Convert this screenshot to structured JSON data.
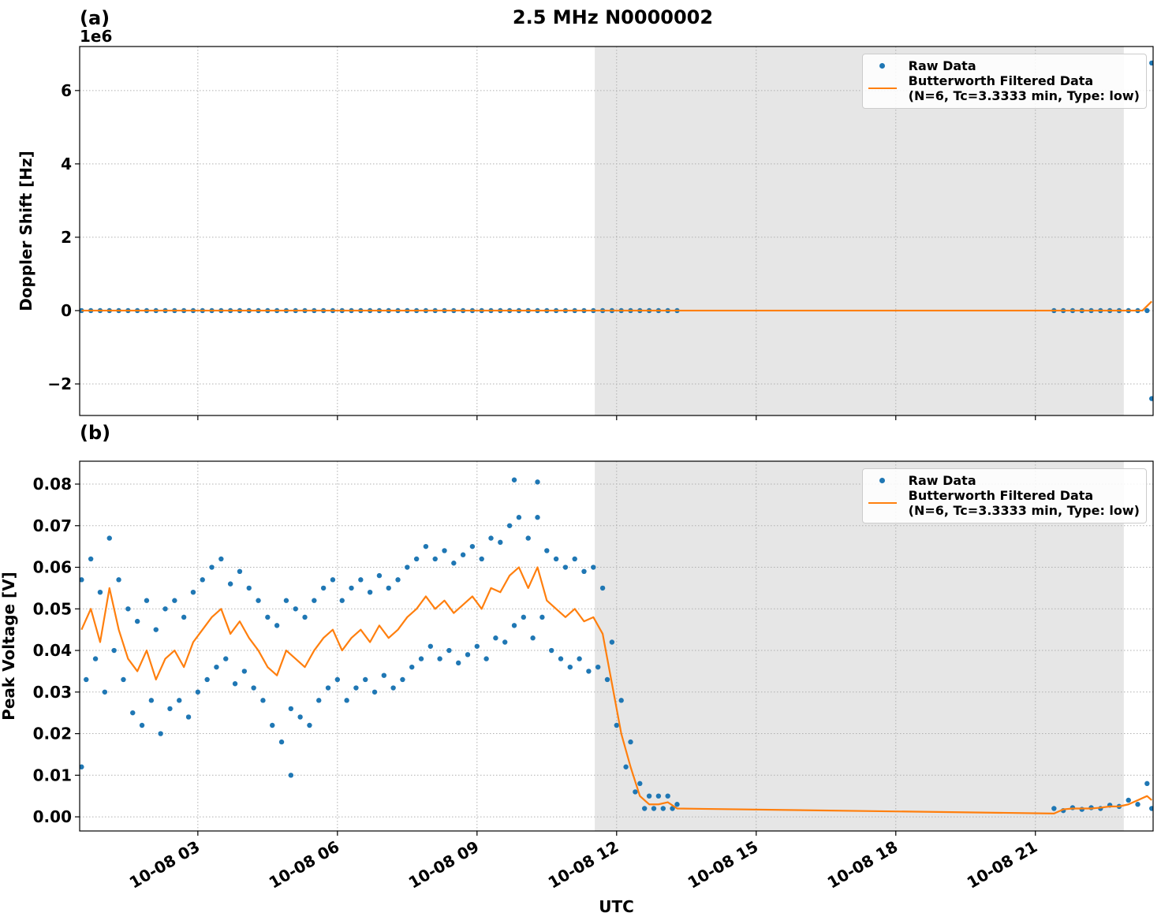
{
  "title": "2.5 MHz N0000002",
  "chart_data": [
    {
      "type": "combo",
      "panel_label": "(a)",
      "ylabel": "Doppler Shift [Hz]",
      "offset_label": "1e6",
      "xlim": [
        0.46,
        23.53
      ],
      "ylim": [
        -2.86,
        7.2
      ],
      "xticks": [
        {
          "value": 3,
          "label": "10-08 03"
        },
        {
          "value": 6,
          "label": "10-08 06"
        },
        {
          "value": 9,
          "label": "10-08 09"
        },
        {
          "value": 12,
          "label": "10-08 12"
        },
        {
          "value": 15,
          "label": "10-08 15"
        },
        {
          "value": 18,
          "label": "10-08 18"
        },
        {
          "value": 21,
          "label": "10-08 21"
        }
      ],
      "yticks": [
        {
          "value": -2,
          "label": "−2"
        },
        0,
        2,
        4,
        6
      ],
      "grid": true,
      "legend": "upper right",
      "shaded_span": [
        11.53,
        22.9
      ],
      "shade_color": "#e6e6e6",
      "series": [
        {
          "name": "Raw Data",
          "type": "scatter",
          "color": "#1f77b4",
          "x": [
            0.5,
            0.7,
            0.9,
            1.1,
            1.3,
            1.5,
            1.7,
            1.9,
            2.1,
            2.3,
            2.5,
            2.7,
            2.9,
            3.1,
            3.3,
            3.5,
            3.7,
            3.9,
            4.1,
            4.3,
            4.5,
            4.7,
            4.9,
            5.1,
            5.3,
            5.5,
            5.7,
            5.9,
            6.1,
            6.3,
            6.5,
            6.7,
            6.9,
            7.1,
            7.3,
            7.5,
            7.7,
            7.9,
            8.1,
            8.3,
            8.5,
            8.7,
            8.9,
            9.1,
            9.3,
            9.5,
            9.7,
            9.9,
            10.1,
            10.3,
            10.5,
            10.7,
            10.9,
            11.1,
            11.3,
            11.5,
            11.7,
            11.9,
            12.1,
            12.3,
            12.5,
            12.7,
            12.9,
            13.1,
            13.3,
            21.4,
            21.6,
            21.8,
            22.0,
            22.2,
            22.4,
            22.6,
            22.8,
            23.0,
            23.2,
            23.4,
            23.5,
            23.5
          ],
          "values": [
            0,
            0,
            0,
            0,
            0,
            0,
            0,
            0,
            0,
            0,
            0,
            0,
            0,
            0,
            0,
            0,
            0,
            0,
            0,
            0,
            0,
            0,
            0,
            0,
            0,
            0,
            0,
            0,
            0,
            0,
            0,
            0,
            0,
            0,
            0,
            0,
            0,
            0,
            0,
            0,
            0,
            0,
            0,
            0,
            0,
            0,
            0,
            0,
            0,
            0,
            0,
            0,
            0,
            0,
            0,
            0,
            0,
            0,
            0,
            0,
            0,
            0,
            0,
            0,
            0,
            0,
            0,
            0,
            0,
            0,
            0,
            0,
            0,
            0,
            0,
            0,
            6.75,
            -2.4
          ]
        },
        {
          "name": "Butterworth Filtered Data\n(N=6, Tc=3.3333 min, Type: low)",
          "type": "line",
          "color": "#ff7f0e",
          "x": [
            0.5,
            13.3,
            21.4,
            23.3,
            23.5
          ],
          "values": [
            0,
            0,
            0,
            0,
            0.25
          ]
        }
      ]
    },
    {
      "type": "combo",
      "panel_label": "(b)",
      "ylabel": "Peak Voltage [V]",
      "xlabel": "UTC",
      "xlim": [
        0.46,
        23.53
      ],
      "ylim": [
        -0.0034,
        0.0855
      ],
      "xticks": [
        {
          "value": 3,
          "label": "10-08 03"
        },
        {
          "value": 6,
          "label": "10-08 06"
        },
        {
          "value": 9,
          "label": "10-08 09"
        },
        {
          "value": 12,
          "label": "10-08 12"
        },
        {
          "value": 15,
          "label": "10-08 15"
        },
        {
          "value": 18,
          "label": "10-08 18"
        },
        {
          "value": 21,
          "label": "10-08 21"
        }
      ],
      "yticks": [
        {
          "value": 0,
          "label": "0.00"
        },
        0.01,
        0.02,
        0.03,
        0.04,
        0.05,
        0.06,
        0.07,
        0.08
      ],
      "grid": true,
      "legend": "upper right",
      "shaded_span": [
        11.53,
        22.9
      ],
      "shade_color": "#e6e6e6",
      "series": [
        {
          "name": "Raw Data",
          "type": "scatter",
          "color": "#1f77b4",
          "x": [
            0.5,
            0.6,
            0.7,
            0.8,
            0.9,
            1.0,
            1.1,
            1.2,
            1.3,
            1.4,
            1.5,
            1.6,
            1.7,
            1.8,
            1.9,
            2.0,
            2.1,
            2.2,
            2.3,
            2.4,
            2.5,
            2.6,
            2.7,
            2.8,
            2.9,
            3.0,
            3.1,
            3.2,
            3.3,
            3.4,
            3.5,
            3.6,
            3.7,
            3.8,
            3.9,
            4.0,
            4.1,
            4.2,
            4.3,
            4.4,
            4.5,
            4.6,
            4.7,
            4.8,
            4.9,
            5.0,
            5.1,
            5.2,
            5.3,
            5.4,
            5.5,
            5.6,
            5.7,
            5.8,
            5.9,
            6.0,
            6.1,
            6.2,
            6.3,
            6.4,
            6.5,
            6.6,
            6.7,
            6.8,
            6.9,
            7.0,
            7.1,
            7.2,
            7.3,
            7.4,
            7.5,
            7.6,
            7.7,
            7.8,
            7.9,
            8.0,
            8.1,
            8.2,
            8.3,
            8.4,
            8.5,
            8.6,
            8.7,
            8.8,
            8.9,
            9.0,
            9.1,
            9.2,
            9.3,
            9.4,
            9.5,
            9.6,
            9.7,
            9.8,
            9.9,
            10.0,
            10.1,
            10.2,
            10.3,
            10.4,
            10.5,
            10.6,
            10.7,
            10.8,
            10.9,
            11.0,
            11.1,
            11.2,
            11.3,
            11.4,
            11.5,
            11.6,
            11.7,
            11.8,
            11.9,
            12.0,
            12.1,
            12.2,
            12.3,
            12.4,
            12.5,
            12.6,
            12.7,
            12.8,
            12.9,
            13.0,
            13.1,
            13.2,
            13.3,
            21.4,
            21.6,
            21.8,
            22.0,
            22.2,
            22.4,
            22.6,
            22.8,
            23.0,
            23.2,
            23.4,
            23.5,
            9.8,
            10.3,
            0.5,
            5.0
          ],
          "values": [
            0.057,
            0.033,
            0.062,
            0.038,
            0.054,
            0.03,
            0.067,
            0.04,
            0.057,
            0.033,
            0.05,
            0.025,
            0.047,
            0.022,
            0.052,
            0.028,
            0.045,
            0.02,
            0.05,
            0.026,
            0.052,
            0.028,
            0.048,
            0.024,
            0.054,
            0.03,
            0.057,
            0.033,
            0.06,
            0.036,
            0.062,
            0.038,
            0.056,
            0.032,
            0.059,
            0.035,
            0.055,
            0.031,
            0.052,
            0.028,
            0.048,
            0.022,
            0.046,
            0.018,
            0.052,
            0.026,
            0.05,
            0.024,
            0.048,
            0.022,
            0.052,
            0.028,
            0.055,
            0.031,
            0.057,
            0.033,
            0.052,
            0.028,
            0.055,
            0.031,
            0.057,
            0.033,
            0.054,
            0.03,
            0.058,
            0.034,
            0.055,
            0.031,
            0.057,
            0.033,
            0.06,
            0.036,
            0.062,
            0.038,
            0.065,
            0.041,
            0.062,
            0.038,
            0.064,
            0.04,
            0.061,
            0.037,
            0.063,
            0.039,
            0.065,
            0.041,
            0.062,
            0.038,
            0.067,
            0.043,
            0.066,
            0.042,
            0.07,
            0.046,
            0.072,
            0.048,
            0.067,
            0.043,
            0.072,
            0.048,
            0.064,
            0.04,
            0.062,
            0.038,
            0.06,
            0.036,
            0.062,
            0.038,
            0.059,
            0.035,
            0.06,
            0.036,
            0.055,
            0.033,
            0.042,
            0.022,
            0.028,
            0.012,
            0.018,
            0.006,
            0.008,
            0.002,
            0.005,
            0.002,
            0.005,
            0.002,
            0.005,
            0.002,
            0.003,
            0.002,
            0.0015,
            0.0022,
            0.0018,
            0.0022,
            0.002,
            0.0028,
            0.0025,
            0.004,
            0.003,
            0.008,
            0.002,
            0.081,
            0.0805,
            0.012,
            0.01
          ]
        },
        {
          "name": "Butterworth Filtered Data\n(N=6, Tc=3.3333 min, Type: low)",
          "type": "line",
          "color": "#ff7f0e",
          "x": [
            0.5,
            0.7,
            0.9,
            1.1,
            1.3,
            1.5,
            1.7,
            1.9,
            2.1,
            2.3,
            2.5,
            2.7,
            2.9,
            3.1,
            3.3,
            3.5,
            3.7,
            3.9,
            4.1,
            4.3,
            4.5,
            4.7,
            4.9,
            5.1,
            5.3,
            5.5,
            5.7,
            5.9,
            6.1,
            6.3,
            6.5,
            6.7,
            6.9,
            7.1,
            7.3,
            7.5,
            7.7,
            7.9,
            8.1,
            8.3,
            8.5,
            8.7,
            8.9,
            9.1,
            9.3,
            9.5,
            9.7,
            9.9,
            10.1,
            10.3,
            10.5,
            10.7,
            10.9,
            11.1,
            11.3,
            11.5,
            11.7,
            11.9,
            12.1,
            12.3,
            12.5,
            12.7,
            12.9,
            13.1,
            13.3,
            21.4,
            21.6,
            21.8,
            22.0,
            22.2,
            22.4,
            22.6,
            22.8,
            23.0,
            23.2,
            23.4,
            23.5
          ],
          "values": [
            0.045,
            0.05,
            0.042,
            0.055,
            0.045,
            0.038,
            0.035,
            0.04,
            0.033,
            0.038,
            0.04,
            0.036,
            0.042,
            0.045,
            0.048,
            0.05,
            0.044,
            0.047,
            0.043,
            0.04,
            0.036,
            0.034,
            0.04,
            0.038,
            0.036,
            0.04,
            0.043,
            0.045,
            0.04,
            0.043,
            0.045,
            0.042,
            0.046,
            0.043,
            0.045,
            0.048,
            0.05,
            0.053,
            0.05,
            0.052,
            0.049,
            0.051,
            0.053,
            0.05,
            0.055,
            0.054,
            0.058,
            0.06,
            0.055,
            0.06,
            0.052,
            0.05,
            0.048,
            0.05,
            0.047,
            0.048,
            0.044,
            0.032,
            0.02,
            0.012,
            0.005,
            0.003,
            0.003,
            0.0035,
            0.002,
            0.0008,
            0.0018,
            0.002,
            0.002,
            0.002,
            0.0022,
            0.0025,
            0.0025,
            0.003,
            0.004,
            0.005,
            0.004
          ]
        }
      ]
    }
  ]
}
